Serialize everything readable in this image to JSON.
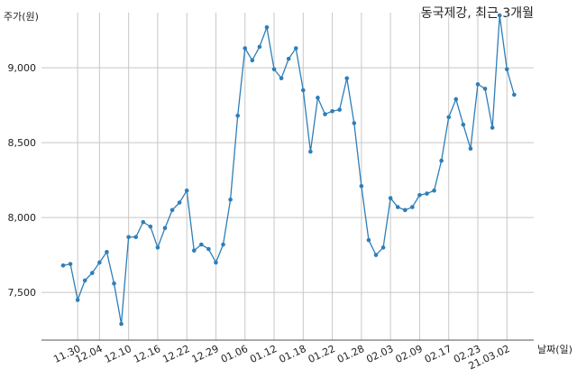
{
  "chart_data": {
    "type": "line",
    "title": "동국제강, 최근 3개월",
    "xlabel": "날짜(일)",
    "ylabel": "주가(원)",
    "ylim": [
      7200,
      9350
    ],
    "yticks": [
      7500,
      8000,
      8500,
      9000
    ],
    "ytick_labels": [
      "7,500",
      "8,000",
      "8,500",
      "9,000"
    ],
    "grid": true,
    "series_color": "#2e7eb8",
    "x_tick_labels": [
      "11.30",
      "12.04",
      "12.10",
      "12.16",
      "12.22",
      "12.29",
      "01.06",
      "01.12",
      "01.18",
      "01.22",
      "01.28",
      "02.03",
      "02.09",
      "02.17",
      "02.23",
      "21.03.02"
    ],
    "x_tick_index": [
      2,
      5,
      9,
      13,
      17,
      21,
      25,
      29,
      33,
      37,
      41,
      45,
      49,
      53,
      57,
      61
    ],
    "values": [
      7680,
      7690,
      7450,
      7580,
      7630,
      7700,
      7770,
      7560,
      7290,
      7870,
      7870,
      7970,
      7940,
      7800,
      7930,
      8050,
      8100,
      8180,
      7780,
      7820,
      7790,
      7700,
      7820,
      8120,
      8680,
      9130,
      9050,
      9140,
      9270,
      8990,
      8930,
      9060,
      9130,
      8850,
      8440,
      8800,
      8690,
      8710,
      8720,
      8930,
      8630,
      8210,
      7850,
      7750,
      7800,
      8130,
      8070,
      8050,
      8070,
      8150,
      8160,
      8180,
      8380,
      8670,
      8790,
      8620,
      8460,
      8890,
      8860,
      8600,
      9350,
      8990,
      8820
    ]
  }
}
